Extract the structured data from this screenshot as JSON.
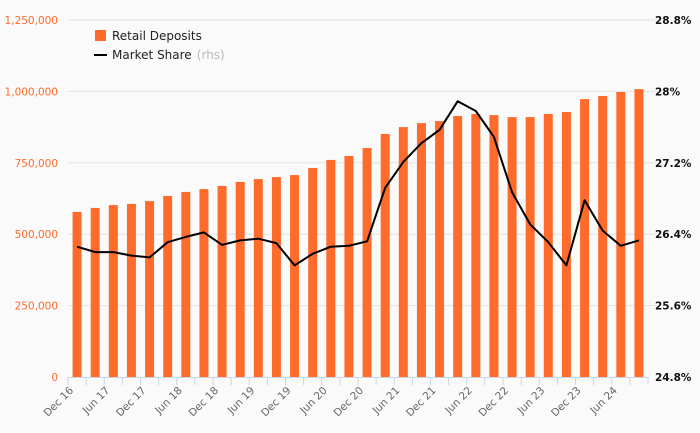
{
  "chart_data": {
    "type": "bar+line",
    "title": "",
    "legend": {
      "position": "top-left",
      "entries": [
        {
          "name": "Retail Deposits",
          "suffix": ""
        },
        {
          "name": "Market Share",
          "suffix": "(rhs)"
        }
      ]
    },
    "colors": {
      "bars": "#ff6b2b",
      "line": "#000000",
      "grid": "#e3e3e3",
      "axis": "#c8d4e8"
    },
    "left_axis": {
      "ylim": [
        0,
        1250000
      ],
      "ticks": [
        "0",
        "250,000",
        "500,000",
        "750,000",
        "1,000,000",
        "1,250,000"
      ],
      "tick_values": [
        0,
        250000,
        500000,
        750000,
        1000000,
        1250000
      ]
    },
    "right_axis": {
      "ylim": [
        24.8,
        28.8
      ],
      "ticks": [
        "24.8%",
        "25.6%",
        "26.4%",
        "27.2%",
        "28%",
        "28.8%"
      ],
      "tick_values": [
        24.8,
        25.6,
        26.4,
        27.2,
        28.0,
        28.8
      ]
    },
    "x_labels": [
      "Dec 16",
      "Jun 17",
      "Dec 17",
      "Jun 18",
      "Dec 18",
      "Jun 19",
      "Dec 19",
      "Jun 20",
      "Dec 20",
      "Jun 21",
      "Dec 21",
      "Jun 22",
      "Dec 22",
      "Jun 23",
      "Dec 23",
      "Jun 24"
    ],
    "series": [
      {
        "name": "Retail Deposits",
        "type": "bar",
        "axis": "left",
        "values": [
          578000,
          592000,
          602000,
          606000,
          616000,
          634000,
          648000,
          658000,
          669000,
          683000,
          693000,
          700000,
          707000,
          732000,
          760000,
          774000,
          802000,
          851000,
          875000,
          889000,
          896000,
          914000,
          921000,
          917000,
          910000,
          910000,
          921000,
          928000,
          973000,
          984000,
          998000,
          1008000
        ]
      },
      {
        "name": "Market Share",
        "type": "line",
        "axis": "right",
        "values": [
          26.26,
          26.2,
          26.2,
          26.16,
          26.14,
          26.31,
          26.37,
          26.42,
          26.28,
          26.33,
          26.35,
          26.3,
          26.05,
          26.18,
          26.26,
          26.27,
          26.32,
          26.92,
          27.21,
          27.42,
          27.57,
          27.89,
          27.78,
          27.49,
          26.87,
          26.51,
          26.31,
          26.05,
          26.78,
          26.44,
          26.27,
          26.33
        ]
      }
    ]
  }
}
